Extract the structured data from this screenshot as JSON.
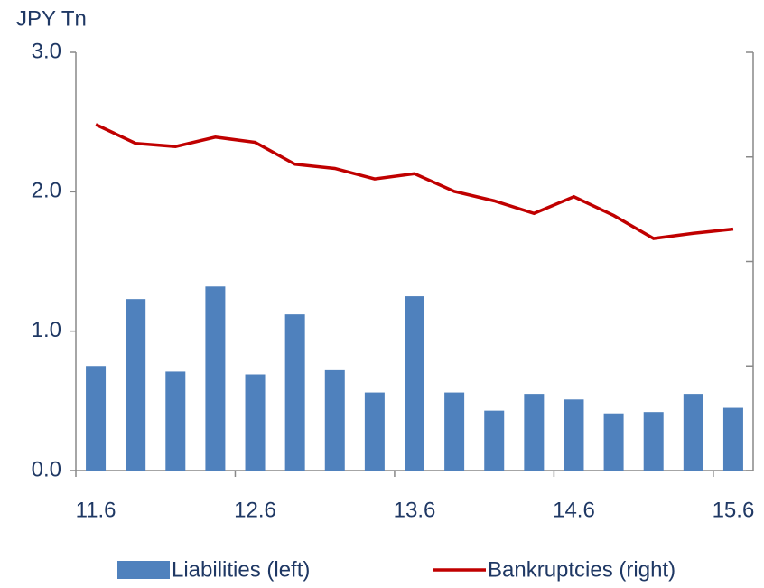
{
  "chart_data": {
    "type": "bar_line",
    "y_axis_label": "JPY Tn",
    "categories": [
      "11.6",
      null,
      null,
      null,
      "12.6",
      null,
      null,
      null,
      "13.6",
      null,
      null,
      null,
      "14.6",
      null,
      null,
      null,
      "15.6"
    ],
    "series": [
      {
        "name": "Liabilities (left)",
        "type": "bar",
        "color": "#4f81bd",
        "axis": "y",
        "values": [
          0.75,
          1.23,
          0.71,
          1.32,
          0.69,
          1.12,
          0.72,
          0.56,
          1.25,
          0.56,
          0.43,
          0.55,
          0.51,
          0.41,
          0.42,
          0.55,
          0.45
        ]
      },
      {
        "name": "Bankruptcies (right)",
        "type": "line",
        "color": "#c00000",
        "axis": "y2",
        "values": [
          3.31,
          3.13,
          3.1,
          3.19,
          3.14,
          2.93,
          2.89,
          2.79,
          2.84,
          2.67,
          2.58,
          2.46,
          2.62,
          2.44,
          2.22,
          2.27,
          2.31
        ]
      }
    ],
    "ylim": [
      0,
      3
    ],
    "yticks": [
      {
        "value": 0,
        "label": "0.0"
      },
      {
        "value": 1,
        "label": "1.0"
      },
      {
        "value": 2,
        "label": "2.0"
      },
      {
        "value": 3,
        "label": "3.0"
      }
    ],
    "y2lim": [
      0,
      4
    ],
    "y2ticks": [
      0,
      1,
      2,
      3,
      4
    ],
    "legend": "bottom"
  }
}
